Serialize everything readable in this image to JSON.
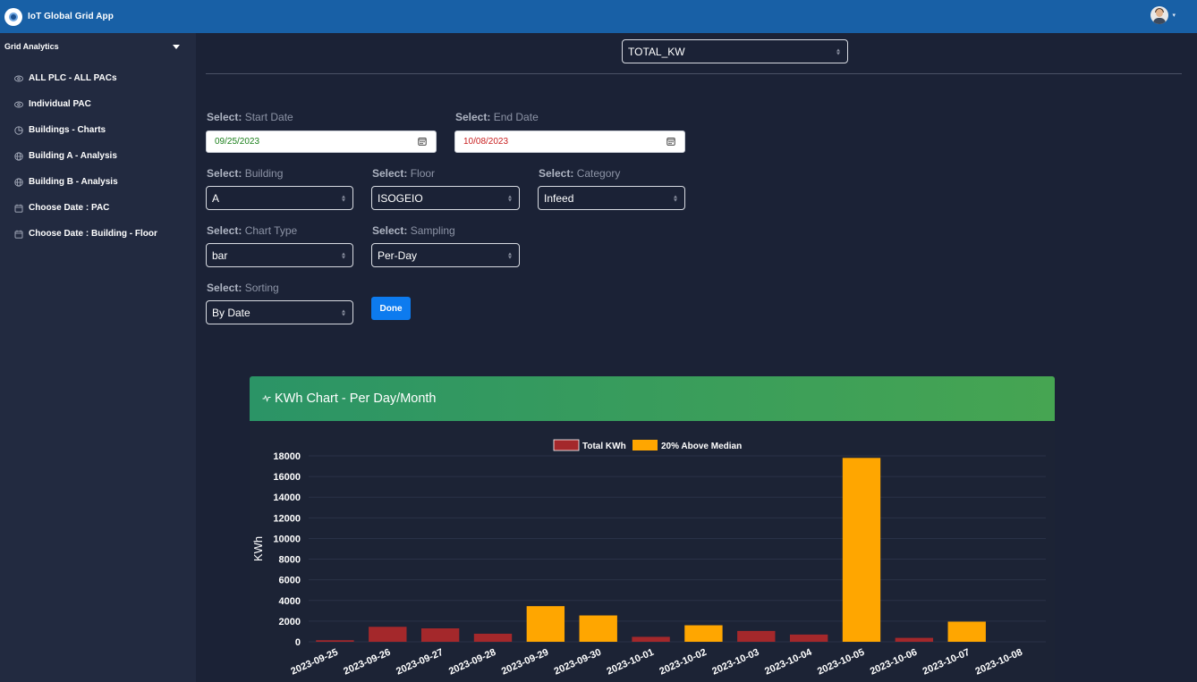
{
  "app": {
    "title": "IoT Global Grid App"
  },
  "sidebar": {
    "header": "Grid Analytics",
    "items": [
      {
        "label": "ALL PLC - ALL PACs",
        "icon": "eye-icon"
      },
      {
        "label": "Individual PAC",
        "icon": "eye-icon"
      },
      {
        "label": "Buildings - Charts",
        "icon": "pie-chart-icon"
      },
      {
        "label": "Building A - Analysis",
        "icon": "globe-icon"
      },
      {
        "label": "Building B - Analysis",
        "icon": "globe-icon"
      },
      {
        "label": "Choose Date : PAC",
        "icon": "calendar-icon"
      },
      {
        "label": "Choose Date : Building - Floor",
        "icon": "calendar-icon"
      }
    ]
  },
  "metric_select": {
    "value": "TOTAL_KW"
  },
  "form": {
    "select_prefix": "Select:",
    "start_date": {
      "label": "Start Date",
      "value": "09/25/2023",
      "color": "#1a7f1a"
    },
    "end_date": {
      "label": "End Date",
      "value": "10/08/2023",
      "color": "#c81e1e"
    },
    "building": {
      "label": "Building",
      "value": "A"
    },
    "floor": {
      "label": "Floor",
      "value": "ISOGEIO"
    },
    "category": {
      "label": "Category",
      "value": "Infeed"
    },
    "chart_type": {
      "label": "Chart Type",
      "value": "bar"
    },
    "sampling": {
      "label": "Sampling",
      "value": "Per-Day"
    },
    "sorting": {
      "label": "Sorting",
      "value": "By Date"
    },
    "done_label": "Done"
  },
  "chart_card": {
    "title": "KWh Chart - Per Day/Month",
    "icon": "pulse-icon"
  },
  "colors": {
    "normal": "#a4282b",
    "above": "#ffa600",
    "header_start": "#2b9466",
    "header_end": "#46a552",
    "accent": "#0d7bef"
  },
  "chart_data": {
    "type": "bar",
    "legend": [
      {
        "name": "Total KWh",
        "color": "#a4282b"
      },
      {
        "name": "20% Above Median",
        "color": "#ffa600"
      }
    ],
    "legend_position": "top",
    "ylabel": "KWh",
    "xlabel": "",
    "ylim": [
      0,
      18000
    ],
    "yticks": [
      0,
      2000,
      4000,
      6000,
      8000,
      10000,
      12000,
      14000,
      16000,
      18000
    ],
    "grid": true,
    "categories": [
      "2023-09-25",
      "2023-09-26",
      "2023-09-27",
      "2023-09-28",
      "2023-09-29",
      "2023-09-30",
      "2023-10-01",
      "2023-10-02",
      "2023-10-03",
      "2023-10-04",
      "2023-10-05",
      "2023-10-06",
      "2023-10-07",
      "2023-10-08"
    ],
    "values": [
      150,
      1450,
      1300,
      780,
      3450,
      2550,
      480,
      1600,
      1050,
      700,
      17800,
      380,
      1950,
      0
    ],
    "series_of_bar": [
      "Total KWh",
      "Total KWh",
      "Total KWh",
      "Total KWh",
      "20% Above Median",
      "20% Above Median",
      "Total KWh",
      "20% Above Median",
      "Total KWh",
      "Total KWh",
      "20% Above Median",
      "Total KWh",
      "20% Above Median",
      "Total KWh"
    ]
  }
}
